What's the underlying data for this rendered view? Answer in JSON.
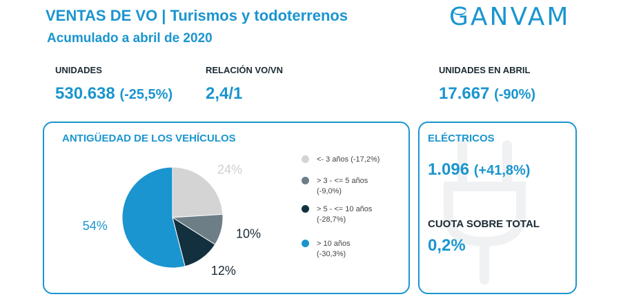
{
  "header": {
    "title": "VENTAS DE VO | Turismos y todoterrenos",
    "subtitle": "Acumulado a abril de 2020",
    "brand": "GANVAM"
  },
  "kpis": {
    "unidades": {
      "label": "UNIDADES",
      "value": "530.638",
      "delta": "(-25,5%)"
    },
    "relacion": {
      "label": "RELACIÓN VO/VN",
      "value": "2,4/1"
    },
    "abril": {
      "label": "UNIDADES EN ABRIL",
      "value": "17.667",
      "delta": "(-90%)"
    }
  },
  "antiguedad": {
    "title": "ANTIGÜEDAD DE LOS VEHÍCULOS"
  },
  "electricos": {
    "title": "ELÉCTRICOS",
    "value": "1.096",
    "delta": "(+41,8%)",
    "cuota_label": "CUOTA SOBRE TOTAL",
    "cuota_value": "0,2%"
  },
  "colors": {
    "accent": "#1a95cf",
    "dark": "#1b2a33"
  },
  "chart_data": {
    "type": "pie",
    "title": "ANTIGÜEDAD DE LOS VEHÍCULOS",
    "slices": [
      {
        "label": "<- 3 años",
        "change": "(-17,2%)",
        "value": 24,
        "value_label": "24%",
        "color": "#d4d4d4"
      },
      {
        "label": "> 3 - <= 5 años",
        "change": "(-9,0%)",
        "value": 10,
        "value_label": "10%",
        "color": "#6d7e86"
      },
      {
        "label": "> 5 - <= 10 años",
        "change": "(-28,7%)",
        "value": 12,
        "value_label": "12%",
        "color": "#13303f"
      },
      {
        "label": "> 10 años",
        "change": "(-30,3%)",
        "value": 54,
        "value_label": "54%",
        "color": "#1a95cf"
      }
    ],
    "legend_position": "right"
  }
}
